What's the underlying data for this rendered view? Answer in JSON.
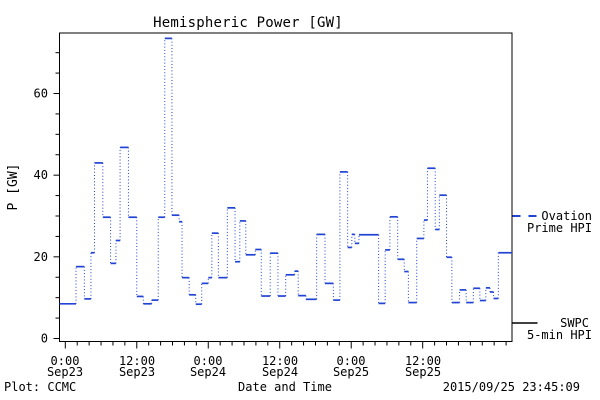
{
  "title": "Hemispheric Power [GW]",
  "axes": {
    "y_label": "P [GW]",
    "x_label": "Date and Time",
    "y_ticks": [
      {
        "label": "0",
        "value": 0
      },
      {
        "label": "20",
        "value": 20
      },
      {
        "label": "40",
        "value": 40
      },
      {
        "label": "60",
        "value": 60
      }
    ],
    "x_ticks": [
      {
        "time": "0:00",
        "date": "Sep23",
        "hour": 0
      },
      {
        "time": "12:00",
        "date": "Sep23",
        "hour": 12
      },
      {
        "time": "0:00",
        "date": "Sep24",
        "hour": 24
      },
      {
        "time": "12:00",
        "date": "Sep24",
        "hour": 36
      },
      {
        "time": "0:00",
        "date": "Sep25",
        "hour": 48
      },
      {
        "time": "12:00",
        "date": "Sep25",
        "hour": 60
      }
    ]
  },
  "legend": {
    "ovation": {
      "line1": "Ovation",
      "line2": "Prime HPI",
      "color": "#2244d4"
    },
    "swpc": {
      "line1": "SWPC",
      "line2": "5-min HPI",
      "color": "#000000"
    }
  },
  "footer": {
    "credit": "Plot: CCMC",
    "timestamp": "2015/09/25 23:45:09"
  },
  "chart_data": {
    "type": "line",
    "style": "step-histogram",
    "title": "Hemispheric Power [GW]",
    "xlabel": "Date and Time",
    "ylabel": "P [GW]",
    "ylim": [
      0,
      75
    ],
    "xlim_hours": [
      -1,
      75
    ],
    "x_unit": "hours since 2015-09-23 00:00",
    "x_tick_hours": [
      0,
      12,
      24,
      36,
      48,
      60
    ],
    "x_tick_labels": [
      "0:00 Sep23",
      "12:00 Sep23",
      "0:00 Sep24",
      "12:00 Sep24",
      "0:00 Sep25",
      "12:00 Sep25"
    ],
    "y_tick_values": [
      0,
      20,
      40,
      60
    ],
    "x_minor_step_hours": 2,
    "y_minor_step": 5,
    "grid": false,
    "legend_position": "right-outside",
    "series": [
      {
        "name": "Ovation Prime HPI",
        "color": "#2244d4",
        "step_hours": [
          -1.0,
          1.8,
          3.2,
          4.3,
          4.9,
          6.3,
          7.6,
          8.5,
          9.2,
          10.6,
          12.0,
          13.1,
          14.5,
          15.6,
          16.7,
          17.9,
          19.1,
          19.6,
          20.8,
          21.9,
          22.9,
          24.0,
          24.6,
          25.7,
          27.2,
          28.5,
          29.3,
          30.3,
          31.9,
          32.9,
          34.4,
          35.7,
          37.0,
          38.5,
          39.1,
          40.4,
          42.2,
          43.6,
          45.0,
          46.1,
          47.4,
          48.1,
          48.6,
          49.3,
          52.6,
          53.7,
          54.5,
          55.8,
          56.9,
          57.6,
          59.0,
          60.2,
          60.8,
          62.1,
          62.8,
          64.0,
          64.9,
          66.2,
          67.3,
          68.5,
          69.6,
          70.6,
          71.3,
          71.9,
          72.7,
          75.0
        ],
        "values_gw": [
          8.5,
          17.6,
          9.7,
          21.0,
          43.0,
          29.7,
          18.4,
          24.0,
          46.8,
          29.7,
          10.3,
          8.5,
          9.4,
          29.7,
          73.5,
          30.2,
          28.6,
          14.9,
          10.7,
          8.4,
          13.5,
          14.9,
          25.8,
          14.9,
          32.0,
          18.8,
          28.8,
          20.5,
          21.8,
          10.4,
          20.9,
          10.4,
          15.6,
          16.5,
          10.5,
          9.6,
          25.5,
          13.5,
          9.4,
          40.8,
          22.3,
          25.5,
          23.3,
          25.4,
          8.6,
          21.7,
          29.8,
          19.4,
          16.4,
          8.8,
          24.5,
          29.0,
          41.7,
          26.7,
          35.1,
          19.9,
          8.8,
          11.9,
          8.8,
          12.3,
          9.3,
          12.4,
          11.4,
          9.8,
          21.0
        ]
      },
      {
        "name": "SWPC 5-min HPI",
        "color": "#000000",
        "note": "shown only as level marker on right axis",
        "marker_gw": 3.8
      }
    ]
  }
}
